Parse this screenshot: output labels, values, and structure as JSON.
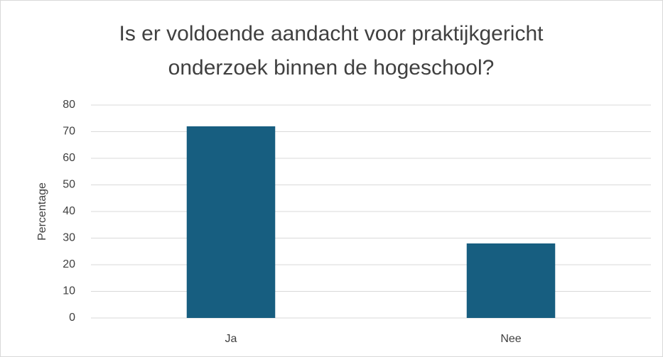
{
  "chart_data": {
    "type": "bar",
    "title": "Is er voldoende aandacht voor praktijkgericht onderzoek binnen de hogeschool?",
    "y_label": "Percentage",
    "categories": [
      "Ja",
      "Nee"
    ],
    "values": [
      72,
      28
    ],
    "color": "#175e80",
    "ylim": [
      0,
      80
    ],
    "yticks": [
      0,
      10,
      20,
      30,
      40,
      50,
      60,
      70,
      80
    ],
    "grid": true
  }
}
